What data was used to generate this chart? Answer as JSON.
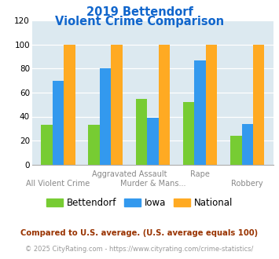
{
  "title_line1": "2019 Bettendorf",
  "title_line2": "Violent Crime Comparison",
  "bettendorf": [
    33,
    33,
    55,
    52,
    24
  ],
  "iowa": [
    70,
    80,
    39,
    87,
    34
  ],
  "national": [
    100,
    100,
    100,
    100,
    100
  ],
  "color_bettendorf": "#77cc33",
  "color_iowa": "#3399ee",
  "color_national": "#ffaa22",
  "ylim": [
    0,
    120
  ],
  "yticks": [
    0,
    20,
    40,
    60,
    80,
    100,
    120
  ],
  "background_color": "#dce9f0",
  "title_color": "#1166cc",
  "x_row1": [
    [
      1.5,
      "Aggravated Assault"
    ],
    [
      3.0,
      "Rape"
    ]
  ],
  "x_row2": [
    [
      0.0,
      "All Violent Crime"
    ],
    [
      2.0,
      "Murder & Mans..."
    ],
    [
      4.0,
      "Robbery"
    ]
  ],
  "legend_labels": [
    "Bettendorf",
    "Iowa",
    "National"
  ],
  "footnote1": "Compared to U.S. average. (U.S. average equals 100)",
  "footnote2": "© 2025 CityRating.com - https://www.cityrating.com/crime-statistics/",
  "footnote1_color": "#993300",
  "footnote2_color": "#999999",
  "footnote2_link_color": "#3366cc"
}
